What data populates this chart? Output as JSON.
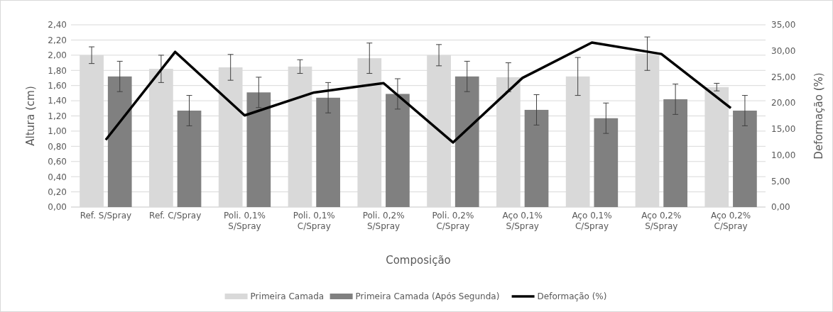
{
  "chart_data": {
    "type": "bar",
    "xlabel": "Composição",
    "ylabel": "Altura (cm)",
    "y2label": "Deformação  (%)",
    "categories": [
      "Ref. S/Spray",
      "Ref. C/Spray",
      "Poli. 0,1% S/Spray",
      "Poli. 0,1% C/Spray",
      "Poli. 0,2% S/Spray",
      "Poli. 0,2% C/Spray",
      "Aço 0,1% S/Spray",
      "Aço 0,1% C/Spray",
      "Aço 0,2% S/Spray",
      "Aço 0,2% C/Spray"
    ],
    "series": [
      {
        "name": "Primeira Camada",
        "color": "#d9d9d9",
        "values": [
          2.0,
          1.82,
          1.84,
          1.85,
          1.96,
          2.0,
          1.71,
          1.72,
          2.02,
          1.58
        ],
        "errors": [
          0.11,
          0.18,
          0.17,
          0.09,
          0.2,
          0.14,
          0.19,
          0.25,
          0.22,
          0.05
        ]
      },
      {
        "name": "Primeira Camada (Após Segunda)",
        "color": "#808080",
        "values": [
          1.72,
          1.27,
          1.51,
          1.44,
          1.49,
          1.72,
          1.28,
          1.17,
          1.42,
          1.27
        ],
        "errors": [
          0.2,
          0.2,
          0.2,
          0.2,
          0.2,
          0.2,
          0.2,
          0.2,
          0.2,
          0.2
        ]
      },
      {
        "name": "Deformação (%)",
        "type": "line",
        "axis": "y2",
        "color": "#000000",
        "values": [
          12.9,
          29.8,
          17.6,
          22.0,
          23.8,
          12.4,
          24.8,
          31.6,
          29.4,
          19.0
        ]
      }
    ],
    "ylim": [
      0,
      2.4
    ],
    "yticks": [
      {
        "value": 0,
        "label": "0,00"
      },
      {
        "value": 0.2,
        "label": "0,20"
      },
      {
        "value": 0.4,
        "label": "0,40"
      },
      {
        "value": 0.6,
        "label": "0,60"
      },
      {
        "value": 0.8,
        "label": "0,80"
      },
      {
        "value": 1,
        "label": "1,00"
      },
      {
        "value": 1.2,
        "label": "1,20"
      },
      {
        "value": 1.4,
        "label": "1,40"
      },
      {
        "value": 1.6,
        "label": "1,60"
      },
      {
        "value": 1.8,
        "label": "1,80"
      },
      {
        "value": 2,
        "label": "2,00"
      },
      {
        "value": 2.2,
        "label": "2,20"
      },
      {
        "value": 2.4,
        "label": "2,40"
      }
    ],
    "y2lim": [
      0,
      35
    ],
    "y2ticks": [
      {
        "value": 0,
        "label": "0,00"
      },
      {
        "value": 5,
        "label": "5,00"
      },
      {
        "value": 10,
        "label": "10,00"
      },
      {
        "value": 15,
        "label": "15,00"
      },
      {
        "value": 20,
        "label": "20,00"
      },
      {
        "value": 25,
        "label": "25,00"
      },
      {
        "value": 30,
        "label": "30,00"
      },
      {
        "value": 35,
        "label": "35,00"
      }
    ],
    "grid": "y",
    "legend": "bottom",
    "marker": "none",
    "line_style": "solid"
  }
}
